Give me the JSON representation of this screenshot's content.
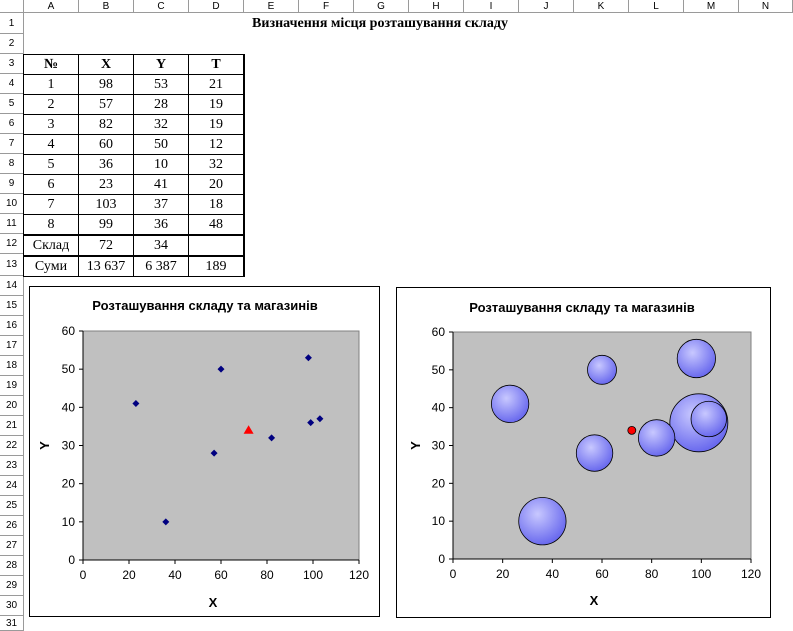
{
  "columns": [
    "A",
    "B",
    "C",
    "D",
    "E",
    "F",
    "G",
    "H",
    "I",
    "J",
    "K",
    "L",
    "M",
    "N"
  ],
  "rows": [
    "1",
    "2",
    "3",
    "4",
    "5",
    "6",
    "7",
    "8",
    "9",
    "10",
    "11",
    "12",
    "13",
    "14",
    "15",
    "16",
    "17",
    "18",
    "19",
    "20",
    "21",
    "22",
    "23",
    "24",
    "25",
    "26",
    "27",
    "28",
    "29",
    "30",
    "31"
  ],
  "sheet_title": "Визначення місця розташування складу",
  "table": {
    "headers": [
      "№",
      "X",
      "Y",
      "T"
    ],
    "rows": [
      [
        "1",
        "98",
        "53",
        "21"
      ],
      [
        "2",
        "57",
        "28",
        "19"
      ],
      [
        "3",
        "82",
        "32",
        "19"
      ],
      [
        "4",
        "60",
        "50",
        "12"
      ],
      [
        "5",
        "36",
        "10",
        "32"
      ],
      [
        "6",
        "23",
        "41",
        "20"
      ],
      [
        "7",
        "103",
        "37",
        "18"
      ],
      [
        "8",
        "99",
        "36",
        "48"
      ]
    ],
    "warehouse_row": [
      "Склад",
      "72",
      "34",
      ""
    ],
    "sums_row": [
      "Суми",
      "13 637",
      "6 387",
      "189"
    ]
  },
  "colors": {
    "marker_store": "#000080",
    "marker_warehouse": "#ff0000",
    "plot_bg": "#c0c0c0",
    "bubble_fill": "#9999ff"
  },
  "chart_data": [
    {
      "type": "scatter",
      "title": "Розташування складу та магазинів",
      "xlabel": "X",
      "ylabel": "Y",
      "xlim": [
        0,
        120
      ],
      "ylim": [
        0,
        60
      ],
      "xticks": [
        "0",
        "20",
        "40",
        "60",
        "80",
        "100",
        "120"
      ],
      "yticks": [
        "0",
        "10",
        "20",
        "30",
        "40",
        "50",
        "60"
      ],
      "series": [
        {
          "points": [
            [
              98,
              53
            ],
            [
              57,
              28
            ],
            [
              82,
              32
            ],
            [
              60,
              50
            ],
            [
              36,
              10
            ],
            [
              23,
              41
            ],
            [
              103,
              37
            ],
            [
              99,
              36
            ]
          ],
          "marker": "diamond"
        },
        {
          "points": [
            [
              72,
              34
            ]
          ],
          "marker": "triangle"
        }
      ]
    },
    {
      "type": "bubble",
      "title": "Розташування складу та магазинів",
      "xlabel": "X",
      "ylabel": "Y",
      "xlim": [
        0,
        120
      ],
      "ylim": [
        0,
        60
      ],
      "xticks": [
        "0",
        "20",
        "40",
        "60",
        "80",
        "100",
        "120"
      ],
      "yticks": [
        "0",
        "10",
        "20",
        "30",
        "40",
        "50",
        "60"
      ],
      "series": [
        {
          "points": [
            [
              98,
              53,
              21
            ],
            [
              57,
              28,
              19
            ],
            [
              82,
              32,
              19
            ],
            [
              60,
              50,
              12
            ],
            [
              36,
              10,
              32
            ],
            [
              23,
              41,
              20
            ],
            [
              103,
              37,
              18
            ],
            [
              99,
              36,
              48
            ]
          ]
        },
        {
          "points": [
            [
              72,
              34,
              1
            ]
          ]
        }
      ]
    }
  ]
}
